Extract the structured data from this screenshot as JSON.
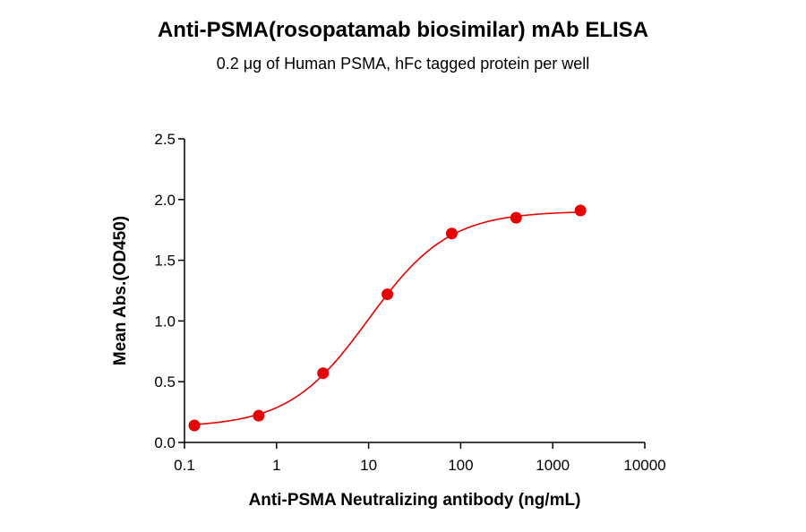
{
  "chart_data": {
    "type": "scatter",
    "title": "Anti-PSMA(rosopatamab biosimilar) mAb ELISA",
    "subtitle": "0.2 μg of Human PSMA, hFc tagged protein per well",
    "xlabel": "Anti-PSMA Neutralizing antibody (ng/mL)",
    "ylabel": "Mean Abs.(OD450)",
    "x_scale": "log",
    "xlim": [
      0.1,
      10000
    ],
    "ylim": [
      0,
      2.5
    ],
    "x_ticks": [
      0.1,
      1,
      10,
      100,
      1000,
      10000
    ],
    "x_tick_labels": [
      "0.1",
      "1",
      "10",
      "100",
      "1000",
      "10000"
    ],
    "y_ticks": [
      0,
      0.5,
      1.0,
      1.5,
      2.0,
      2.5
    ],
    "y_tick_labels": [
      "0.0",
      "0.5",
      "1.0",
      "1.5",
      "2.0",
      "2.5"
    ],
    "grid": false,
    "legend": "none",
    "series": [
      {
        "color": "#e60000",
        "x": [
          0.128,
          0.64,
          3.2,
          16,
          80,
          400,
          2000
        ],
        "y": [
          0.14,
          0.22,
          0.57,
          1.22,
          1.72,
          1.85,
          1.91
        ],
        "fit": "4PL curve"
      }
    ]
  }
}
